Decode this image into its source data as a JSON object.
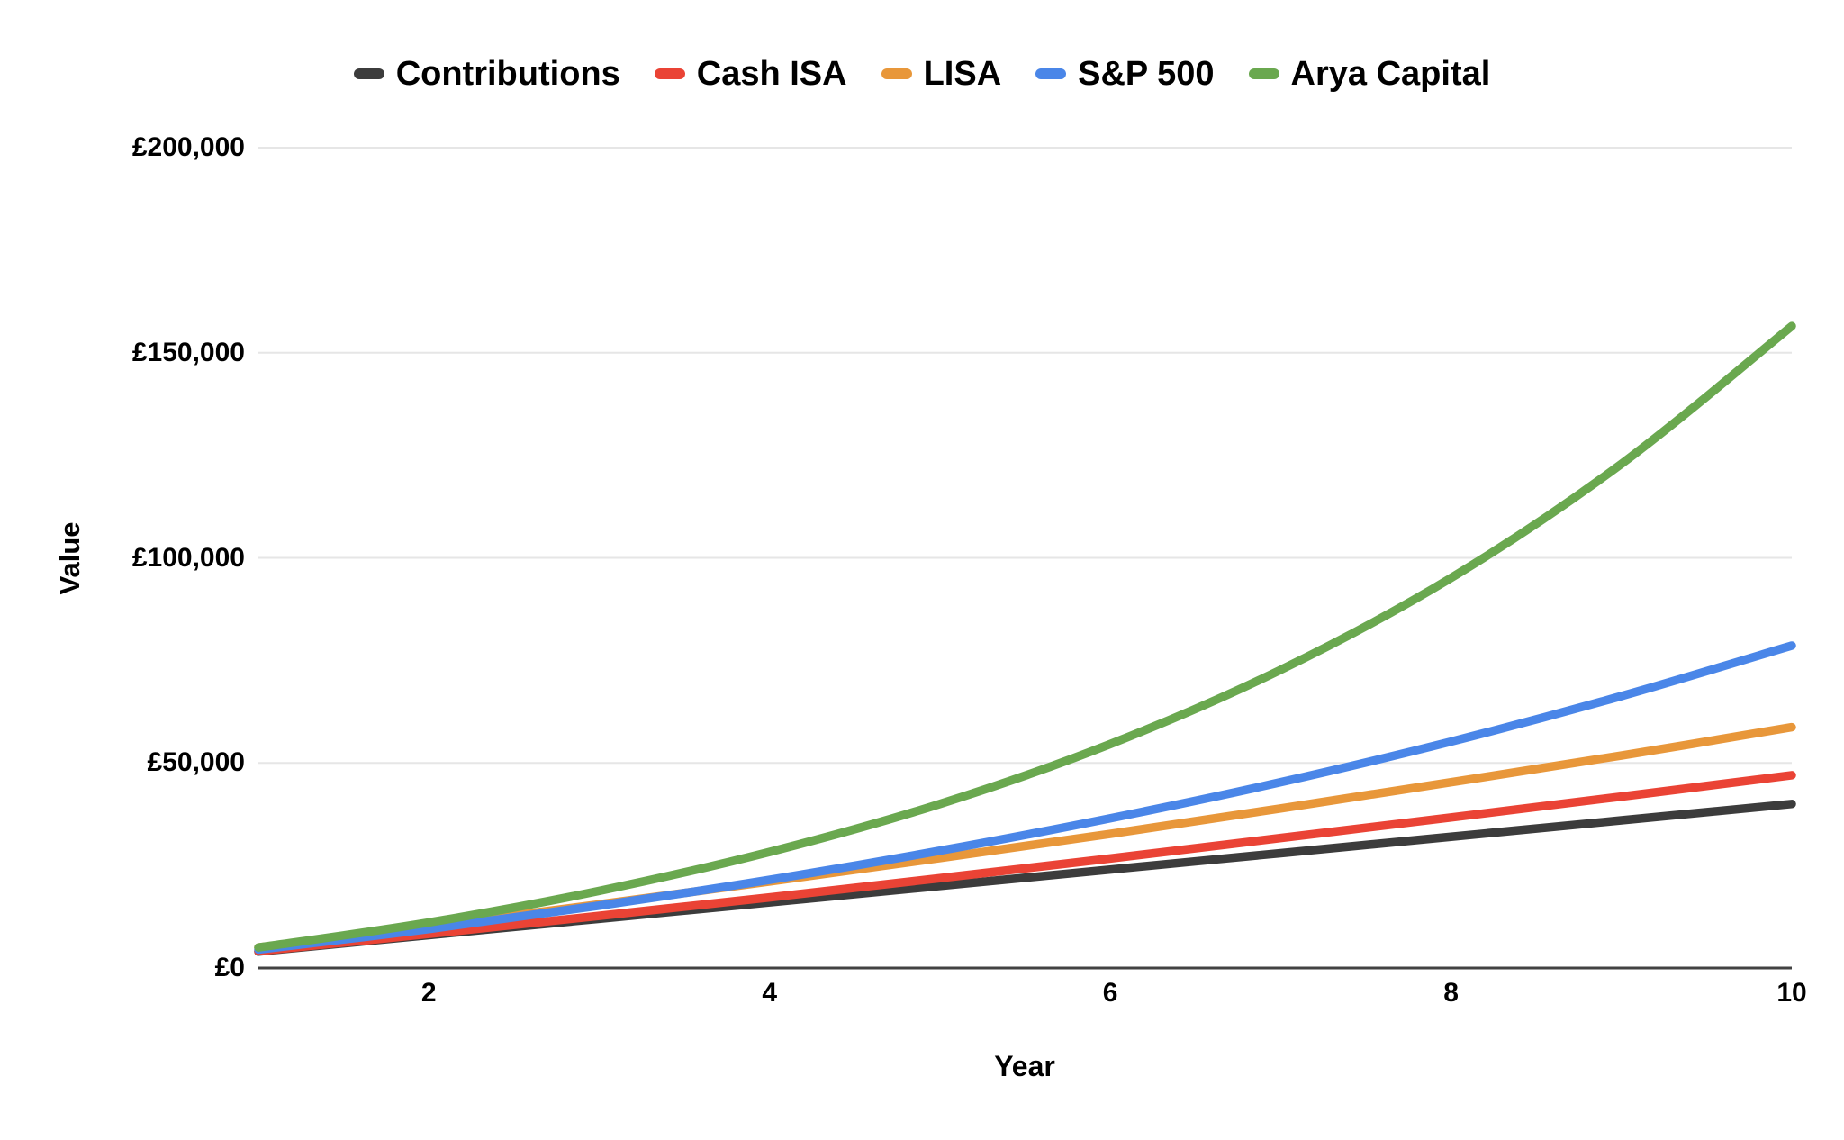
{
  "chart_data": {
    "type": "line",
    "title": "",
    "xlabel": "Year",
    "ylabel": "Value",
    "x": [
      1,
      2,
      3,
      4,
      5,
      6,
      7,
      8,
      9,
      10
    ],
    "xlim": [
      1,
      10
    ],
    "ylim": [
      0,
      200000
    ],
    "xticks": [
      {
        "value": 2,
        "label": "2"
      },
      {
        "value": 4,
        "label": "4"
      },
      {
        "value": 6,
        "label": "6"
      },
      {
        "value": 8,
        "label": "8"
      },
      {
        "value": 10,
        "label": "10"
      }
    ],
    "yticks": [
      {
        "value": 0,
        "label": "£0"
      },
      {
        "value": 50000,
        "label": "£50,000"
      },
      {
        "value": 100000,
        "label": "£100,000"
      },
      {
        "value": 150000,
        "label": "£150,000"
      },
      {
        "value": 200000,
        "label": "£200,000"
      }
    ],
    "grid": "horizontal",
    "legend_position": "top",
    "series": [
      {
        "name": "Contributions",
        "color": "#3C3C3C",
        "values": [
          4000,
          8000,
          12000,
          16000,
          20000,
          24000,
          28000,
          32000,
          36000,
          40000
        ]
      },
      {
        "name": "Cash ISA",
        "color": "#EA4335",
        "values": [
          4100,
          8300,
          12700,
          17200,
          21900,
          26700,
          31700,
          36700,
          41800,
          47000
        ]
      },
      {
        "name": "LISA",
        "color": "#E8973A",
        "values": [
          5000,
          10200,
          15500,
          21100,
          26800,
          32700,
          38900,
          45300,
          51800,
          58700
        ]
      },
      {
        "name": "S&P 500",
        "color": "#4A86E8",
        "values": [
          4500,
          9500,
          15200,
          21500,
          28600,
          36500,
          45300,
          55200,
          66300,
          78600
        ]
      },
      {
        "name": "Arya Capital",
        "color": "#6AA84F",
        "values": [
          5000,
          11100,
          18800,
          28300,
          40000,
          54600,
          72700,
          95100,
          122900,
          156500
        ]
      }
    ]
  },
  "axes": {
    "x_title": "Year",
    "y_title": "Value"
  },
  "colors": {
    "background": "#FFFFFF",
    "gridline": "#E6E6E6",
    "axis_line": "#424242",
    "text": "#000000"
  }
}
